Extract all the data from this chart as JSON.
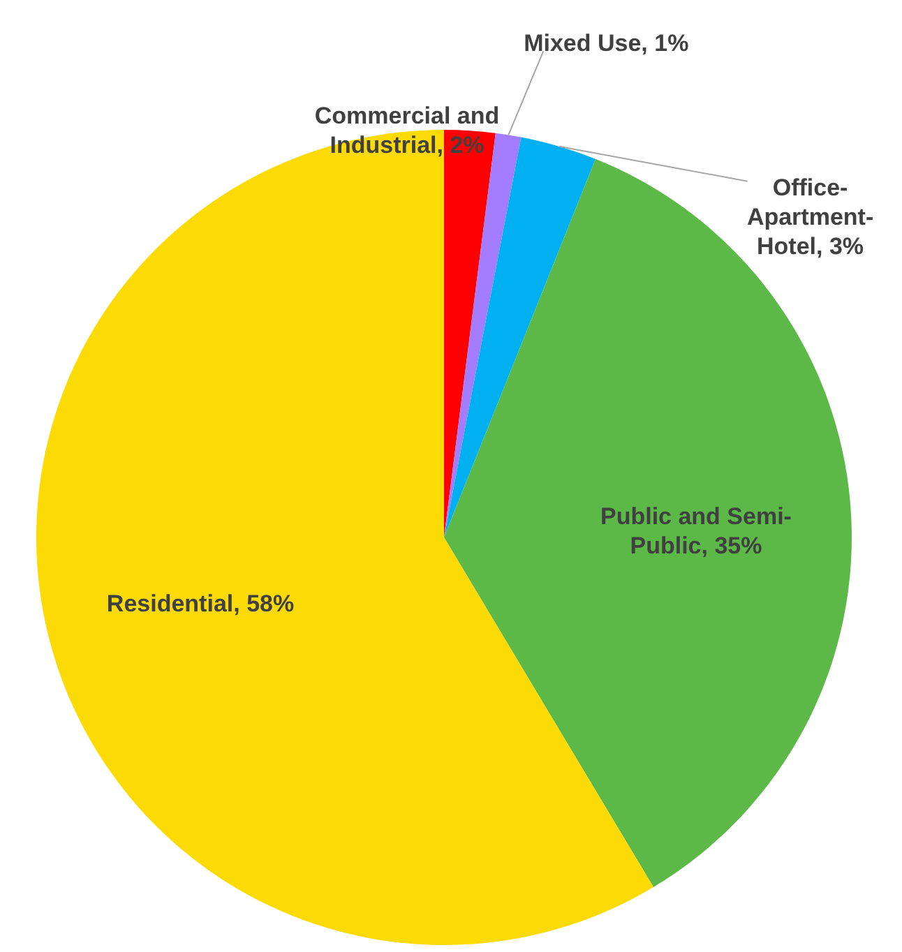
{
  "chart_data": {
    "type": "pie",
    "categories": [
      "Commercial and Industrial",
      "Mixed Use",
      "Office-Apartment-Hotel",
      "Public and Semi-Public",
      "Residential"
    ],
    "values": [
      2,
      1,
      3,
      35,
      58
    ],
    "colors": [
      "#ff0000",
      "#a47cff",
      "#00b0f0",
      "#5cb947",
      "#fbda05"
    ],
    "value_labels": [
      "2%",
      "1%",
      "3%",
      "35%",
      "58%"
    ]
  }
}
